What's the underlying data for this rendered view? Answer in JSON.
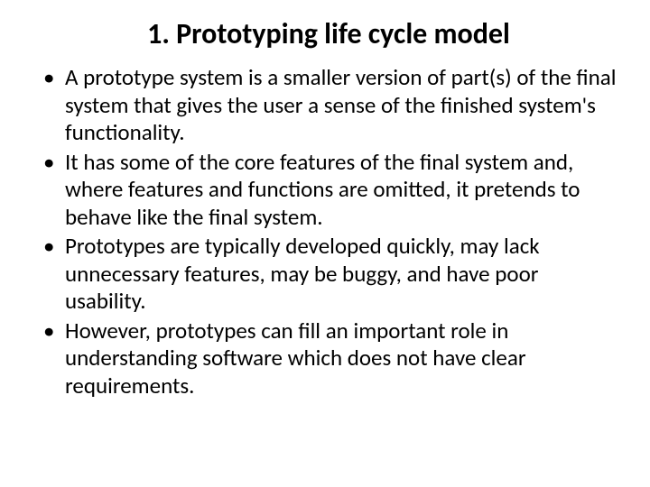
{
  "title": "1. Prototyping life cycle model",
  "bullets": [
    "A prototype system is a smaller version of part(s) of the final system that gives the user a sense of the finished system's functionality.",
    "It has some of the core features of the final system and, where features and functions are omitted, it pretends to behave like the final system.",
    "Prototypes are typically developed quickly, may lack unnecessary features, may be buggy, and have poor usability.",
    "However, prototypes can fill an important role in understanding software which does not have clear requirements."
  ],
  "colors": {
    "background": "#ffffff",
    "text": "#000000"
  },
  "typography": {
    "title_fontsize": 32,
    "title_weight": 700,
    "body_fontsize": 25,
    "font_family": "Calibri"
  }
}
